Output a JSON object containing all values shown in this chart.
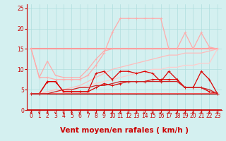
{
  "x": [
    0,
    1,
    2,
    3,
    4,
    5,
    6,
    7,
    8,
    9,
    10,
    11,
    12,
    13,
    14,
    15,
    16,
    17,
    18,
    19,
    20,
    21,
    22,
    23
  ],
  "series": [
    {
      "name": "flat_15",
      "color": "#ff9999",
      "linewidth": 1.5,
      "marker": null,
      "markersize": 0,
      "y": [
        15.0,
        15.0,
        15.0,
        15.0,
        15.0,
        15.0,
        15.0,
        15.0,
        15.0,
        15.0,
        15.0,
        15.0,
        15.0,
        15.0,
        15.0,
        15.0,
        15.0,
        15.0,
        15.0,
        15.0,
        15.0,
        15.0,
        15.0,
        15.0
      ]
    },
    {
      "name": "rafales_peak",
      "color": "#ffaaaa",
      "linewidth": 0.9,
      "marker": "+",
      "markersize": 3,
      "y": [
        15.0,
        8.0,
        8.0,
        7.5,
        7.5,
        7.5,
        7.5,
        8.5,
        11.0,
        14.0,
        19.0,
        22.5,
        22.5,
        22.5,
        22.5,
        22.5,
        22.5,
        15.0,
        15.0,
        19.0,
        15.0,
        19.0,
        15.5,
        15.0
      ]
    },
    {
      "name": "upper_smooth",
      "color": "#ffaaaa",
      "linewidth": 0.9,
      "marker": "+",
      "markersize": 2,
      "y": [
        15.0,
        8.0,
        12.0,
        8.5,
        8.0,
        8.0,
        8.0,
        10.0,
        12.5,
        14.5,
        15.0,
        15.0,
        15.0,
        15.0,
        15.0,
        15.0,
        15.0,
        15.0,
        15.0,
        15.0,
        15.0,
        15.0,
        15.0,
        15.0
      ]
    },
    {
      "name": "rising_light",
      "color": "#ffbbbb",
      "linewidth": 0.9,
      "marker": null,
      "markersize": 0,
      "y": [
        4.0,
        4.0,
        4.5,
        5.0,
        5.0,
        5.5,
        6.0,
        7.0,
        8.0,
        9.0,
        10.0,
        10.5,
        11.0,
        11.5,
        12.0,
        12.5,
        13.0,
        13.5,
        13.5,
        14.0,
        14.0,
        14.0,
        14.5,
        15.0
      ]
    },
    {
      "name": "medium_rising",
      "color": "#ffcccc",
      "linewidth": 0.9,
      "marker": null,
      "markersize": 0,
      "y": [
        4.0,
        4.0,
        4.0,
        4.5,
        4.5,
        5.0,
        5.5,
        6.0,
        6.5,
        7.0,
        7.5,
        8.0,
        8.5,
        9.0,
        9.5,
        10.0,
        10.0,
        10.5,
        10.5,
        11.0,
        11.0,
        11.5,
        11.5,
        15.0
      ]
    },
    {
      "name": "dark_spiky",
      "color": "#dd0000",
      "linewidth": 0.9,
      "marker": "+",
      "markersize": 3.5,
      "y": [
        4.0,
        4.0,
        7.0,
        7.0,
        4.5,
        4.5,
        4.5,
        4.5,
        9.0,
        9.5,
        7.5,
        9.5,
        9.5,
        9.0,
        9.5,
        9.0,
        7.0,
        9.5,
        7.5,
        5.5,
        5.5,
        9.5,
        7.5,
        4.0
      ]
    },
    {
      "name": "dark_smooth",
      "color": "#dd0000",
      "linewidth": 0.9,
      "marker": "+",
      "markersize": 3,
      "y": [
        4.0,
        4.0,
        7.0,
        7.0,
        4.5,
        4.5,
        4.5,
        4.5,
        5.5,
        6.5,
        6.0,
        6.5,
        7.0,
        7.0,
        7.0,
        7.5,
        7.5,
        7.5,
        7.5,
        5.5,
        5.5,
        5.5,
        4.5,
        4.0
      ]
    },
    {
      "name": "flat_4_light",
      "color": "#ff6666",
      "linewidth": 1.5,
      "marker": "+",
      "markersize": 2,
      "y": [
        4.0,
        4.0,
        4.0,
        4.0,
        4.0,
        4.0,
        4.0,
        4.0,
        4.0,
        4.0,
        4.0,
        4.0,
        4.0,
        4.0,
        4.0,
        4.0,
        4.0,
        4.0,
        4.0,
        4.0,
        4.0,
        4.0,
        4.0,
        4.0
      ]
    },
    {
      "name": "flat_4_dark",
      "color": "#880000",
      "linewidth": 0.8,
      "marker": null,
      "markersize": 0,
      "y": [
        4.0,
        4.0,
        4.0,
        4.0,
        4.0,
        4.0,
        4.0,
        4.0,
        4.0,
        4.0,
        4.0,
        4.0,
        4.0,
        4.0,
        4.0,
        4.0,
        4.0,
        4.0,
        4.0,
        4.0,
        4.0,
        4.0,
        4.0,
        4.0
      ]
    },
    {
      "name": "rising_dark",
      "color": "#cc2222",
      "linewidth": 0.9,
      "marker": null,
      "markersize": 0,
      "y": [
        4.0,
        4.0,
        4.0,
        4.5,
        5.0,
        5.0,
        5.5,
        5.5,
        6.0,
        6.0,
        6.5,
        7.0,
        7.0,
        7.0,
        7.0,
        7.0,
        7.0,
        7.0,
        7.0,
        5.5,
        5.5,
        5.5,
        5.0,
        4.0
      ]
    }
  ],
  "xlabel": "Vent moyen/en rafales ( km/h )",
  "xlim": [
    -0.5,
    23.5
  ],
  "ylim": [
    0,
    26
  ],
  "yticks": [
    0,
    5,
    10,
    15,
    20,
    25
  ],
  "xticks": [
    0,
    1,
    2,
    3,
    4,
    5,
    6,
    7,
    8,
    9,
    10,
    11,
    12,
    13,
    14,
    15,
    16,
    17,
    18,
    19,
    20,
    21,
    22,
    23
  ],
  "bg_color": "#d4f0f0",
  "grid_color": "#b0dede",
  "spine_color": "#cc0000",
  "tick_color": "#cc0000",
  "label_color": "#cc0000",
  "tick_fontsize": 5.5,
  "xlabel_fontsize": 7.5
}
